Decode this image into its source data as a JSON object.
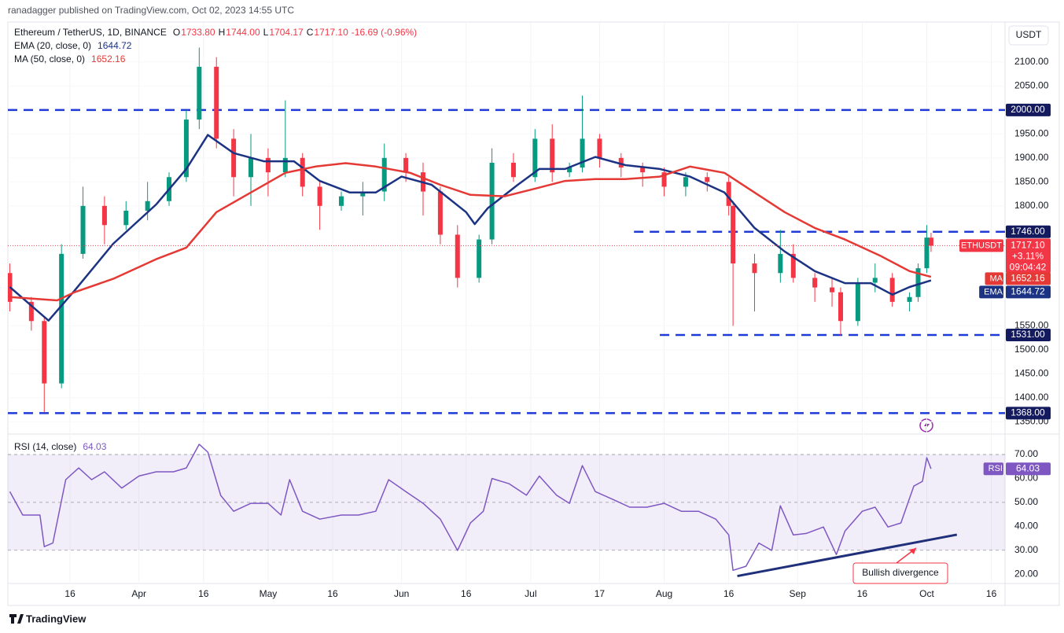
{
  "header": {
    "published": "ranadagger published on TradingView.com, Oct 02, 2023 14:55 UTC"
  },
  "footer": {
    "brand": "TradingView"
  },
  "chart_data": [
    {
      "type": "candlestick",
      "title": "Ethereum / TetherUS, 1D, BINANCE",
      "quote": [
        {
          "key": "O",
          "value": "1733.80"
        },
        {
          "key": "H",
          "value": "1744.00"
        },
        {
          "key": "L",
          "value": "1704.17"
        },
        {
          "key": "C",
          "value": "1717.10"
        }
      ],
      "change": "-16.69 (-0.96%)",
      "currency": "USDT",
      "symbol": "ETHUSDT",
      "last_price": {
        "value": 1717.1,
        "label": "1717.10",
        "change": "+3.11%",
        "countdown": "09:04:42"
      },
      "up_color": "#089981",
      "down_color": "#f23645",
      "x": [
        "2023-03-02",
        "2023-03-07",
        "2023-03-10",
        "2023-03-14",
        "2023-03-19",
        "2023-03-24",
        "2023-03-29",
        "2023-04-03",
        "2023-04-08",
        "2023-04-12",
        "2023-04-15",
        "2023-04-19",
        "2023-04-23",
        "2023-04-27",
        "2023-05-01",
        "2023-05-05",
        "2023-05-09",
        "2023-05-13",
        "2023-05-18",
        "2023-05-23",
        "2023-05-28",
        "2023-06-02",
        "2023-06-06",
        "2023-06-10",
        "2023-06-14",
        "2023-06-19",
        "2023-06-22",
        "2023-06-27",
        "2023-07-02",
        "2023-07-06",
        "2023-07-10",
        "2023-07-13",
        "2023-07-17",
        "2023-07-22",
        "2023-07-27",
        "2023-08-01",
        "2023-08-06",
        "2023-08-11",
        "2023-08-16",
        "2023-08-17",
        "2023-08-22",
        "2023-08-28",
        "2023-08-31",
        "2023-09-05",
        "2023-09-09",
        "2023-09-11",
        "2023-09-15",
        "2023-09-19",
        "2023-09-23",
        "2023-09-27",
        "2023-09-29",
        "2023-10-01",
        "2023-10-02"
      ],
      "open": [
        1660,
        1600,
        1560,
        1430,
        1700,
        1800,
        1760,
        1790,
        1810,
        1860,
        1980,
        2090,
        1940,
        1860,
        1900,
        1870,
        1900,
        1840,
        1800,
        1820,
        1830,
        1900,
        1870,
        1830,
        1740,
        1650,
        1730,
        1890,
        1860,
        1940,
        1870,
        1880,
        1940,
        1900,
        1880,
        1870,
        1840,
        1860,
        1850,
        1800,
        1680,
        1660,
        1700,
        1650,
        1630,
        1620,
        1560,
        1640,
        1650,
        1600,
        1610,
        1670,
        1733.8
      ],
      "high": [
        1680,
        1610,
        1570,
        1720,
        1840,
        1820,
        1810,
        1850,
        1870,
        2000,
        2130,
        2110,
        1960,
        1950,
        1920,
        2020,
        1910,
        1850,
        1830,
        1850,
        1930,
        1910,
        1890,
        1840,
        1760,
        1740,
        1920,
        1910,
        1960,
        1970,
        1890,
        2030,
        1950,
        1910,
        1890,
        1880,
        1870,
        1870,
        1860,
        1810,
        1700,
        1750,
        1720,
        1660,
        1650,
        1630,
        1650,
        1680,
        1660,
        1620,
        1680,
        1760,
        1744
      ],
      "low": [
        1580,
        1540,
        1370,
        1420,
        1690,
        1720,
        1750,
        1770,
        1800,
        1850,
        1960,
        1920,
        1820,
        1800,
        1820,
        1860,
        1820,
        1750,
        1790,
        1780,
        1810,
        1850,
        1780,
        1720,
        1630,
        1640,
        1720,
        1850,
        1850,
        1850,
        1860,
        1870,
        1880,
        1860,
        1840,
        1820,
        1820,
        1830,
        1780,
        1550,
        1580,
        1640,
        1640,
        1600,
        1590,
        1530,
        1550,
        1620,
        1590,
        1580,
        1600,
        1660,
        1704.17
      ],
      "close": [
        1600,
        1560,
        1430,
        1700,
        1800,
        1760,
        1790,
        1810,
        1860,
        1980,
        2090,
        1940,
        1860,
        1900,
        1870,
        1900,
        1840,
        1800,
        1820,
        1830,
        1900,
        1870,
        1830,
        1740,
        1650,
        1730,
        1890,
        1860,
        1940,
        1870,
        1880,
        1940,
        1900,
        1880,
        1870,
        1840,
        1860,
        1850,
        1800,
        1680,
        1660,
        1700,
        1650,
        1630,
        1620,
        1560,
        1640,
        1650,
        1600,
        1610,
        1670,
        1734,
        1717.1
      ],
      "xlim": [
        "2023-03-01",
        "2023-10-19"
      ],
      "xticks": [
        {
          "value": "2023-03-16",
          "label": "16"
        },
        {
          "value": "2023-04-01",
          "label": "Apr"
        },
        {
          "value": "2023-04-16",
          "label": "16"
        },
        {
          "value": "2023-05-01",
          "label": "May"
        },
        {
          "value": "2023-05-16",
          "label": "16"
        },
        {
          "value": "2023-06-01",
          "label": "Jun"
        },
        {
          "value": "2023-06-16",
          "label": "16"
        },
        {
          "value": "2023-07-01",
          "label": "Jul"
        },
        {
          "value": "2023-07-17",
          "label": "17"
        },
        {
          "value": "2023-08-01",
          "label": "Aug"
        },
        {
          "value": "2023-08-16",
          "label": "16"
        },
        {
          "value": "2023-09-01",
          "label": "Sep"
        },
        {
          "value": "2023-09-16",
          "label": "16"
        },
        {
          "value": "2023-10-01",
          "label": "Oct"
        },
        {
          "value": "2023-10-16",
          "label": "16"
        }
      ],
      "grid": true,
      "ylim": [
        1331,
        2180
      ],
      "yticks": [
        {
          "value": 2100,
          "label": "2100.00"
        },
        {
          "value": 2050,
          "label": "2050.00"
        },
        {
          "value": 1950,
          "label": "1950.00"
        },
        {
          "value": 1900,
          "label": "1900.00"
        },
        {
          "value": 1850,
          "label": "1850.00"
        },
        {
          "value": 1800,
          "label": "1800.00"
        },
        {
          "value": 1550,
          "label": "1550.00"
        },
        {
          "value": 1500,
          "label": "1500.00"
        },
        {
          "value": 1450,
          "label": "1450.00"
        },
        {
          "value": 1400,
          "label": "1400.00"
        },
        {
          "value": 1350,
          "label": "1350.00"
        }
      ],
      "level_color": "#1f3ad6",
      "levels": [
        {
          "value": 2000,
          "label": "2000.00",
          "start": "2023-03-01"
        },
        {
          "value": 1746,
          "label": "1746.00",
          "start": "2023-07-25"
        },
        {
          "value": 1531,
          "label": "1531.00",
          "start": "2023-07-31"
        },
        {
          "value": 1368,
          "label": "1368.00",
          "start": "2023-03-01"
        }
      ],
      "series": [
        {
          "name": "EMA (20, close, 0)",
          "tag": "EMA",
          "last": "1644.72",
          "color": "#1c3384",
          "x": [
            "2023-03-02",
            "2023-03-11",
            "2023-03-17",
            "2023-03-26",
            "2023-04-05",
            "2023-04-12",
            "2023-04-17",
            "2023-04-23",
            "2023-04-30",
            "2023-05-07",
            "2023-05-13",
            "2023-05-20",
            "2023-05-26",
            "2023-06-01",
            "2023-06-08",
            "2023-06-16",
            "2023-06-18",
            "2023-06-21",
            "2023-06-28",
            "2023-07-03",
            "2023-07-09",
            "2023-07-16",
            "2023-07-23",
            "2023-07-31",
            "2023-08-07",
            "2023-08-15",
            "2023-08-22",
            "2023-08-29",
            "2023-09-05",
            "2023-09-12",
            "2023-09-18",
            "2023-09-23",
            "2023-09-27",
            "2023-10-02"
          ],
          "values": [
            1631,
            1561,
            1623,
            1721,
            1803,
            1877,
            1948,
            1910,
            1893,
            1893,
            1852,
            1828,
            1828,
            1861,
            1844,
            1787,
            1762,
            1795,
            1844,
            1877,
            1877,
            1902,
            1885,
            1877,
            1861,
            1828,
            1754,
            1705,
            1664,
            1639,
            1639,
            1615,
            1631,
            1644.72
          ]
        },
        {
          "name": "MA (50, close, 0)",
          "tag": "MA",
          "last": "1652.16",
          "color": "#e53935",
          "x": [
            "2023-03-02",
            "2023-03-13",
            "2023-03-17",
            "2023-03-26",
            "2023-04-05",
            "2023-04-12",
            "2023-04-19",
            "2023-04-27",
            "2023-05-05",
            "2023-05-12",
            "2023-05-19",
            "2023-05-26",
            "2023-06-03",
            "2023-06-10",
            "2023-06-17",
            "2023-06-25",
            "2023-07-02",
            "2023-07-09",
            "2023-07-16",
            "2023-07-23",
            "2023-07-31",
            "2023-08-07",
            "2023-08-15",
            "2023-08-22",
            "2023-08-29",
            "2023-09-05",
            "2023-09-12",
            "2023-09-20",
            "2023-09-27",
            "2023-10-02"
          ],
          "values": [
            1610,
            1603,
            1620,
            1648,
            1689,
            1713,
            1787,
            1828,
            1869,
            1882,
            1889,
            1882,
            1869,
            1844,
            1823,
            1820,
            1836,
            1852,
            1856,
            1856,
            1861,
            1882,
            1869,
            1828,
            1787,
            1754,
            1730,
            1697,
            1664,
            1652.16
          ]
        }
      ]
    },
    {
      "type": "line",
      "xlim": [
        "2023-03-01",
        "2023-10-19"
      ],
      "ylim": [
        16.1,
        76.6
      ],
      "yticks": [
        {
          "value": 70,
          "label": "70.00"
        },
        {
          "value": 60,
          "label": "60.00"
        },
        {
          "value": 50,
          "label": "50.00"
        },
        {
          "value": 40,
          "label": "40.00"
        },
        {
          "value": 30,
          "label": "30.00"
        },
        {
          "value": 20,
          "label": "20.00"
        }
      ],
      "band": [
        30,
        70
      ],
      "midline": 50,
      "series": [
        {
          "name": "RSI (14, close)",
          "tag": "RSI",
          "last": "64.03",
          "color": "#7e57c2",
          "x": [
            "2023-03-02",
            "2023-03-05",
            "2023-03-09",
            "2023-03-10",
            "2023-03-12",
            "2023-03-15",
            "2023-03-18",
            "2023-03-21",
            "2023-03-24",
            "2023-03-28",
            "2023-04-01",
            "2023-04-05",
            "2023-04-09",
            "2023-04-12",
            "2023-04-15",
            "2023-04-17",
            "2023-04-20",
            "2023-04-23",
            "2023-04-27",
            "2023-05-01",
            "2023-05-04",
            "2023-05-06",
            "2023-05-09",
            "2023-05-13",
            "2023-05-18",
            "2023-05-22",
            "2023-05-26",
            "2023-05-29",
            "2023-06-02",
            "2023-06-06",
            "2023-06-10",
            "2023-06-14",
            "2023-06-17",
            "2023-06-20",
            "2023-06-22",
            "2023-06-26",
            "2023-06-30",
            "2023-07-03",
            "2023-07-07",
            "2023-07-10",
            "2023-07-13",
            "2023-07-16",
            "2023-07-20",
            "2023-07-24",
            "2023-07-28",
            "2023-08-01",
            "2023-08-05",
            "2023-08-09",
            "2023-08-13",
            "2023-08-16",
            "2023-08-17",
            "2023-08-20",
            "2023-08-23",
            "2023-08-26",
            "2023-08-28",
            "2023-08-31",
            "2023-09-03",
            "2023-09-07",
            "2023-09-10",
            "2023-09-12",
            "2023-09-16",
            "2023-09-19",
            "2023-09-22",
            "2023-09-25",
            "2023-09-28",
            "2023-09-30",
            "2023-10-01",
            "2023-10-02"
          ],
          "values": [
            54.5,
            44.7,
            44.7,
            31.5,
            33,
            59.5,
            64.4,
            59.5,
            62.8,
            56,
            61,
            62.8,
            62.8,
            64.4,
            74.3,
            71,
            52.9,
            46.3,
            49.6,
            49.6,
            44.7,
            59.5,
            46.3,
            43,
            44.7,
            44.7,
            46.3,
            59.5,
            54.5,
            49.6,
            43,
            29.9,
            41.4,
            46.3,
            60,
            57.8,
            53,
            61,
            53,
            49.6,
            65.4,
            54.5,
            51.3,
            48,
            48,
            49.6,
            46.3,
            46.3,
            43,
            36.4,
            21.6,
            23.3,
            33,
            29.9,
            48.6,
            36.4,
            37,
            39.7,
            28.2,
            38,
            46.3,
            48,
            39.7,
            41.4,
            56.8,
            58.8,
            68.7,
            64.03
          ]
        }
      ],
      "trendline": {
        "x": [
          "2023-08-18",
          "2023-10-08"
        ],
        "values": [
          19.2,
          36.5
        ],
        "color": "#1f2f7a"
      },
      "annotation": "Bullish divergence"
    }
  ]
}
